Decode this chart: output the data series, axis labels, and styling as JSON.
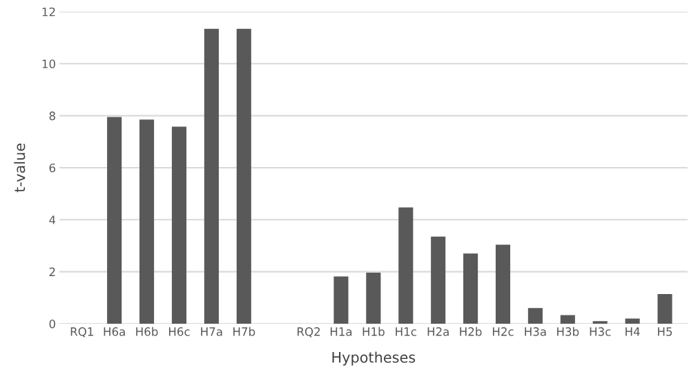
{
  "chart_data": {
    "type": "bar",
    "xlabel": "Hypotheses",
    "ylabel": "t-value",
    "categories": [
      "RQ1",
      "H6a",
      "H6b",
      "H6c",
      "H7a",
      "H7b",
      null,
      "RQ2",
      "H1a",
      "H1b",
      "H1c",
      "H2a",
      "H2b",
      "H2c",
      "H3a",
      "H3b",
      "H3c",
      "H4",
      "H5"
    ],
    "values": [
      null,
      7.95,
      7.85,
      7.58,
      11.34,
      11.34,
      null,
      null,
      1.82,
      1.96,
      4.47,
      3.35,
      2.7,
      3.04,
      0.6,
      0.33,
      0.1,
      0.2,
      1.14
    ],
    "color": "#595959",
    "ylim": [
      0,
      12
    ],
    "yticks": [
      0,
      2,
      4,
      6,
      8,
      10,
      12
    ],
    "grid": "y"
  }
}
